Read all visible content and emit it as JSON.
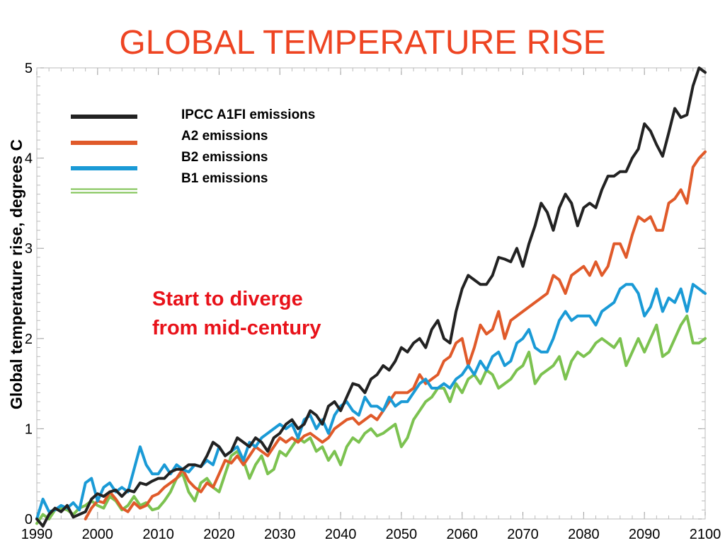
{
  "chart_data": {
    "type": "line",
    "title": "GLOBAL TEMPERATURE RISE",
    "xlabel": "",
    "ylabel": "Global temperature rise, degrees C",
    "xlim": [
      1990,
      2100
    ],
    "ylim": [
      0,
      5
    ],
    "xticks": [
      "1990",
      "2000",
      "2010",
      "2020",
      "2030",
      "2040",
      "2050",
      "2060",
      "2070",
      "2080",
      "2090",
      "2100"
    ],
    "yticks": [
      "0",
      "1",
      "2",
      "3",
      "4",
      "5"
    ],
    "grid": false,
    "legend_position": "top-left",
    "annotation": [
      "Start to diverge",
      "from mid-century"
    ],
    "colors": {
      "title": "#ee4422",
      "annotation": "#e8121a",
      "axis": "#000000"
    },
    "x": [
      1990,
      1991,
      1992,
      1993,
      1994,
      1995,
      1996,
      1997,
      1998,
      1999,
      2000,
      2001,
      2002,
      2003,
      2004,
      2005,
      2006,
      2007,
      2008,
      2009,
      2010,
      2011,
      2012,
      2013,
      2014,
      2015,
      2016,
      2017,
      2018,
      2019,
      2020,
      2021,
      2022,
      2023,
      2024,
      2025,
      2026,
      2027,
      2028,
      2029,
      2030,
      2031,
      2032,
      2033,
      2034,
      2035,
      2036,
      2037,
      2038,
      2039,
      2040,
      2041,
      2042,
      2043,
      2044,
      2045,
      2046,
      2047,
      2048,
      2049,
      2050,
      2051,
      2052,
      2053,
      2054,
      2055,
      2056,
      2057,
      2058,
      2059,
      2060,
      2061,
      2062,
      2063,
      2064,
      2065,
      2066,
      2067,
      2068,
      2069,
      2070,
      2071,
      2072,
      2073,
      2074,
      2075,
      2076,
      2077,
      2078,
      2079,
      2080,
      2081,
      2082,
      2083,
      2084,
      2085,
      2086,
      2087,
      2088,
      2089,
      2090,
      2091,
      2092,
      2093,
      2094,
      2095,
      2096,
      2097,
      2098,
      2099,
      2100
    ],
    "series": [
      {
        "name": "IPCC A1FI emissions",
        "color": "#222222",
        "style": "solid",
        "values": [
          0.0,
          -0.08,
          0.05,
          0.12,
          0.08,
          0.15,
          0.02,
          0.05,
          0.08,
          0.22,
          0.28,
          0.25,
          0.3,
          0.32,
          0.25,
          0.32,
          0.3,
          0.4,
          0.38,
          0.42,
          0.45,
          0.45,
          0.52,
          0.55,
          0.55,
          0.6,
          0.6,
          0.58,
          0.7,
          0.85,
          0.8,
          0.7,
          0.75,
          0.9,
          0.85,
          0.8,
          0.9,
          0.85,
          0.75,
          0.9,
          0.95,
          1.05,
          1.1,
          1.0,
          1.05,
          1.2,
          1.15,
          1.05,
          1.25,
          1.3,
          1.2,
          1.35,
          1.5,
          1.48,
          1.4,
          1.55,
          1.6,
          1.7,
          1.65,
          1.75,
          1.9,
          1.85,
          1.95,
          2.0,
          1.9,
          2.1,
          2.2,
          2.0,
          1.95,
          2.3,
          2.55,
          2.7,
          2.65,
          2.6,
          2.6,
          2.7,
          2.9,
          2.88,
          2.85,
          3.0,
          2.8,
          3.05,
          3.25,
          3.5,
          3.4,
          3.2,
          3.45,
          3.6,
          3.5,
          3.25,
          3.45,
          3.5,
          3.45,
          3.65,
          3.8,
          3.8,
          3.85,
          3.85,
          4.0,
          4.1,
          4.38,
          4.3,
          4.15,
          4.02,
          4.28,
          4.55,
          4.45,
          4.48,
          4.8,
          5.0,
          4.95
        ]
      },
      {
        "name": "A2 emissions",
        "color": "#e05a2a",
        "style": "solid",
        "values": [
          null,
          null,
          null,
          null,
          null,
          null,
          null,
          null,
          0.0,
          0.12,
          0.2,
          0.18,
          0.3,
          0.22,
          0.12,
          0.08,
          0.18,
          0.12,
          0.15,
          0.25,
          0.28,
          0.35,
          0.4,
          0.45,
          0.55,
          0.42,
          0.35,
          0.3,
          0.4,
          0.35,
          0.5,
          0.65,
          0.62,
          0.7,
          0.6,
          0.7,
          0.8,
          0.75,
          0.7,
          0.8,
          0.9,
          0.85,
          0.9,
          0.85,
          0.92,
          0.95,
          0.9,
          0.85,
          0.9,
          1.0,
          1.05,
          1.1,
          1.12,
          1.05,
          1.1,
          1.15,
          1.1,
          1.2,
          1.3,
          1.4,
          1.4,
          1.4,
          1.45,
          1.6,
          1.5,
          1.55,
          1.6,
          1.75,
          1.8,
          1.95,
          2.0,
          1.7,
          1.9,
          2.15,
          2.05,
          2.1,
          2.3,
          2.0,
          2.2,
          2.25,
          2.3,
          2.35,
          2.4,
          2.45,
          2.5,
          2.7,
          2.65,
          2.5,
          2.7,
          2.75,
          2.8,
          2.7,
          2.85,
          2.7,
          2.8,
          3.05,
          3.05,
          2.9,
          3.15,
          3.35,
          3.3,
          3.35,
          3.2,
          3.2,
          3.5,
          3.55,
          3.65,
          3.5,
          3.9,
          4.0,
          4.07
        ]
      },
      {
        "name": "B2 emissions",
        "color": "#1a9ad6",
        "style": "solid",
        "values": [
          0.0,
          0.22,
          0.08,
          0.1,
          0.15,
          0.12,
          0.18,
          0.1,
          0.4,
          0.45,
          0.2,
          0.35,
          0.4,
          0.3,
          0.35,
          0.3,
          0.55,
          0.8,
          0.6,
          0.5,
          0.5,
          0.6,
          0.5,
          0.6,
          0.55,
          0.52,
          0.6,
          0.58,
          0.65,
          0.6,
          0.8,
          0.7,
          0.75,
          0.8,
          0.65,
          0.85,
          0.8,
          0.9,
          0.95,
          1.0,
          1.05,
          1.0,
          1.05,
          0.9,
          1.1,
          1.15,
          1.0,
          1.1,
          0.95,
          1.15,
          1.25,
          1.3,
          1.2,
          1.15,
          1.35,
          1.25,
          1.25,
          1.2,
          1.35,
          1.25,
          1.3,
          1.3,
          1.4,
          1.5,
          1.55,
          1.45,
          1.45,
          1.5,
          1.45,
          1.55,
          1.6,
          1.7,
          1.6,
          1.75,
          1.65,
          1.8,
          1.85,
          1.7,
          1.75,
          1.95,
          2.0,
          2.1,
          1.9,
          1.85,
          1.85,
          2.0,
          2.2,
          2.3,
          2.2,
          2.25,
          2.25,
          2.25,
          2.15,
          2.3,
          2.35,
          2.4,
          2.55,
          2.6,
          2.6,
          2.5,
          2.25,
          2.35,
          2.55,
          2.3,
          2.45,
          2.4,
          2.55,
          2.3,
          2.6,
          2.55,
          2.5
        ]
      },
      {
        "name": "B1 emissions",
        "color": "#7cc250",
        "style": "double",
        "values": [
          -0.05,
          0.05,
          0.0,
          0.1,
          0.12,
          0.1,
          0.05,
          0.12,
          0.15,
          0.2,
          0.15,
          0.12,
          0.25,
          0.2,
          0.1,
          0.15,
          0.25,
          0.15,
          0.18,
          0.1,
          0.12,
          0.2,
          0.3,
          0.45,
          0.5,
          0.3,
          0.2,
          0.4,
          0.45,
          0.35,
          0.3,
          0.5,
          0.7,
          0.75,
          0.65,
          0.45,
          0.6,
          0.7,
          0.5,
          0.55,
          0.75,
          0.7,
          0.8,
          0.9,
          0.85,
          0.9,
          0.75,
          0.8,
          0.65,
          0.75,
          0.6,
          0.8,
          0.9,
          0.85,
          0.95,
          1.0,
          0.92,
          0.95,
          1.0,
          1.05,
          0.8,
          0.9,
          1.1,
          1.2,
          1.3,
          1.35,
          1.45,
          1.45,
          1.3,
          1.5,
          1.4,
          1.55,
          1.6,
          1.5,
          1.65,
          1.6,
          1.45,
          1.5,
          1.55,
          1.65,
          1.7,
          1.85,
          1.5,
          1.6,
          1.65,
          1.7,
          1.8,
          1.55,
          1.75,
          1.85,
          1.8,
          1.85,
          1.95,
          2.0,
          1.95,
          1.9,
          2.0,
          1.7,
          1.85,
          2.0,
          1.85,
          2.0,
          2.15,
          1.8,
          1.85,
          2.0,
          2.15,
          2.25,
          1.95,
          1.95,
          2.0
        ]
      }
    ]
  }
}
